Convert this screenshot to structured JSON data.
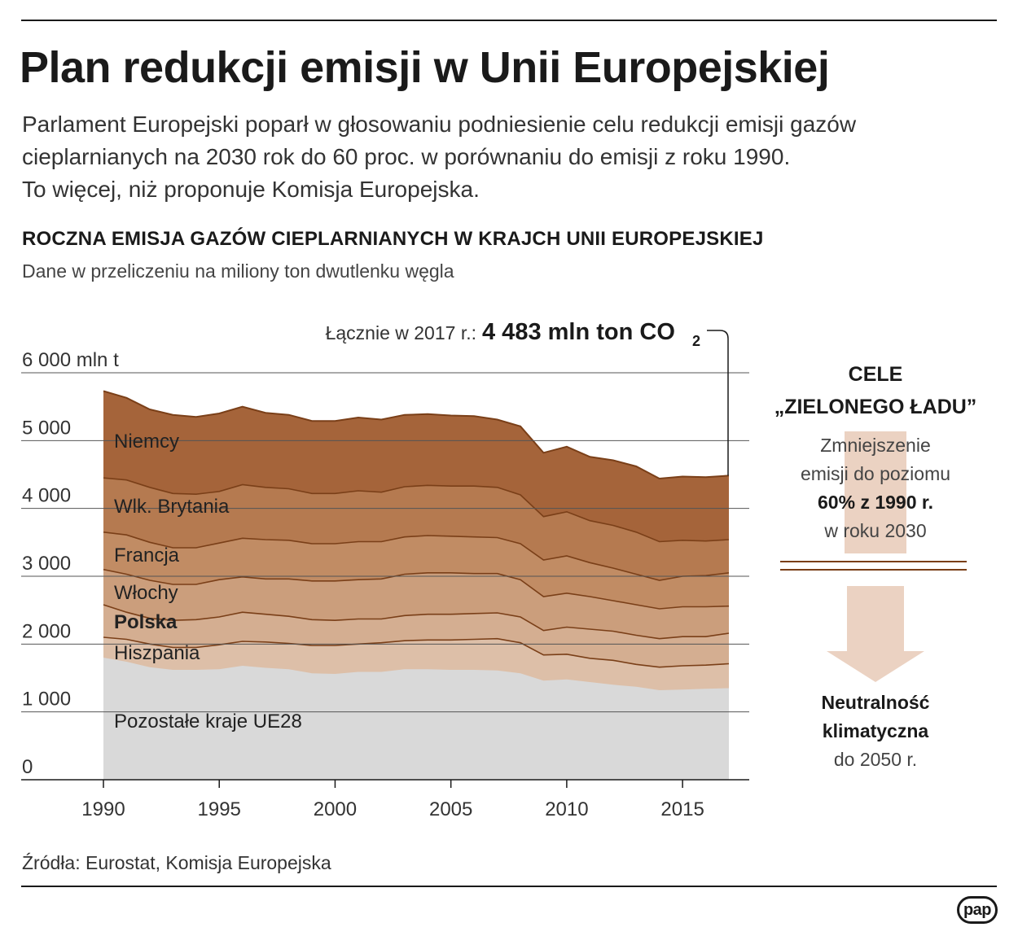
{
  "title": "Plan redukcji emisji w Unii Europejskiej",
  "intro": [
    "Parlament Europejski poparł w głosowaniu podniesienie celu redukcji emisji gazów",
    "cieplarnianych na 2030 rok do 60 proc. w porównaniu do emisji z roku 1990.",
    "To więcej, niż proponuje Komisja Europejska."
  ],
  "chart_heading": "ROCZNA EMISJA GAZÓW CIEPLARNIANYCH W KRAJCH UNII EUROPEJSKIEJ",
  "chart_subheading": "Dane w przeliczeniu na miliony ton dwutlenku węgla",
  "source": "Źródła: Eurostat, Komisja Europejska",
  "goals": {
    "title_1": "CELE",
    "title_2": "„ZIELONEGO ŁADU”",
    "goal1_line1": "Zmniejszenie",
    "goal1_line2": "emisji do poziomu",
    "goal1_line3": "60% z 1990 r.",
    "goal1_line4": "w roku 2030",
    "goal2_line1": "Neutralność",
    "goal2_line2": "klimatyczna",
    "goal2_line3": "do 2050 r."
  },
  "logo": "pap",
  "colors": {
    "Niemcy": "#a5643a",
    "Wlk. Brytania": "#b57a50",
    "Francja": "#c18c64",
    "Włochy": "#cb9e7c",
    "Polska": "#d4ae91",
    "Hiszpania": "#ddbfa8",
    "Pozostałe kraje UE28": "#d9d9d9",
    "boundary": "#7a3f18",
    "arrow": "#ebd2c2",
    "gridline": "#555555"
  },
  "chart_data": {
    "type": "area",
    "stacked": true,
    "title": "ROCZNA EMISJA GAZÓW CIEPLARNIANYCH W KRAJCH UNII EUROPEJSKIEJ",
    "ylabel": "mln t",
    "ylim": [
      0,
      6000
    ],
    "yticks": [
      0,
      1000,
      2000,
      3000,
      4000,
      5000,
      6000
    ],
    "ytick_labels": [
      "0",
      "1 000",
      "2 000",
      "3 000",
      "4 000",
      "5 000",
      "6 000 mln t"
    ],
    "xticks": [
      1990,
      1995,
      2000,
      2005,
      2010,
      2015
    ],
    "x": [
      1990,
      1991,
      1992,
      1993,
      1994,
      1995,
      1996,
      1997,
      1998,
      1999,
      2000,
      2001,
      2002,
      2003,
      2004,
      2005,
      2006,
      2007,
      2008,
      2009,
      2010,
      2011,
      2012,
      2013,
      2014,
      2015,
      2016,
      2017
    ],
    "cumulative_top": {
      "Pozostałe kraje UE28": [
        1800,
        1740,
        1660,
        1620,
        1620,
        1630,
        1680,
        1650,
        1630,
        1570,
        1560,
        1590,
        1590,
        1630,
        1630,
        1620,
        1620,
        1610,
        1570,
        1460,
        1480,
        1440,
        1400,
        1370,
        1320,
        1330,
        1340,
        1350
      ],
      "Hiszpania": [
        2100,
        2070,
        2000,
        1950,
        1950,
        1990,
        2040,
        2030,
        2010,
        1980,
        1980,
        2000,
        2020,
        2050,
        2060,
        2060,
        2070,
        2080,
        2020,
        1840,
        1850,
        1790,
        1760,
        1700,
        1660,
        1680,
        1690,
        1710
      ],
      "Polska": [
        2580,
        2470,
        2380,
        2350,
        2360,
        2400,
        2470,
        2440,
        2410,
        2360,
        2350,
        2370,
        2370,
        2420,
        2440,
        2440,
        2450,
        2460,
        2400,
        2200,
        2250,
        2220,
        2190,
        2130,
        2080,
        2110,
        2110,
        2160
      ],
      "Włochy": [
        3100,
        3030,
        2940,
        2880,
        2880,
        2950,
        2990,
        2960,
        2960,
        2930,
        2930,
        2950,
        2960,
        3030,
        3050,
        3050,
        3040,
        3040,
        2950,
        2700,
        2750,
        2700,
        2640,
        2580,
        2520,
        2550,
        2550,
        2560
      ],
      "Francja": [
        3650,
        3610,
        3500,
        3420,
        3420,
        3490,
        3560,
        3540,
        3530,
        3480,
        3480,
        3510,
        3510,
        3580,
        3600,
        3590,
        3580,
        3570,
        3480,
        3240,
        3300,
        3200,
        3120,
        3030,
        2940,
        3000,
        3010,
        3050
      ],
      "Wlk. Brytania": [
        4450,
        4420,
        4310,
        4220,
        4210,
        4250,
        4350,
        4310,
        4290,
        4220,
        4220,
        4260,
        4240,
        4320,
        4340,
        4330,
        4330,
        4310,
        4200,
        3880,
        3950,
        3820,
        3750,
        3650,
        3510,
        3530,
        3520,
        3540
      ],
      "Niemcy": [
        5730,
        5630,
        5460,
        5380,
        5350,
        5400,
        5500,
        5410,
        5380,
        5290,
        5290,
        5340,
        5310,
        5380,
        5390,
        5370,
        5360,
        5310,
        5210,
        4820,
        4910,
        4760,
        4710,
        4620,
        4440,
        4470,
        4460,
        4483
      ]
    },
    "series_order": [
      "Pozostałe kraje UE28",
      "Hiszpania",
      "Polska",
      "Włochy",
      "Francja",
      "Wlk. Brytania",
      "Niemcy"
    ],
    "series_labels": [
      {
        "name": "Niemcy",
        "bold": false
      },
      {
        "name": "Wlk. Brytania",
        "bold": false
      },
      {
        "name": "Francja",
        "bold": false
      },
      {
        "name": "Włochy",
        "bold": false
      },
      {
        "name": "Polska",
        "bold": true
      },
      {
        "name": "Hiszpania",
        "bold": false
      },
      {
        "name": "Pozostałe kraje UE28",
        "bold": false
      }
    ],
    "annotation": {
      "prefix": "Łącznie w 2017 r.:",
      "value": "4 483 mln ton CO",
      "subscript": "2",
      "x": 2017,
      "y": 4483
    }
  }
}
